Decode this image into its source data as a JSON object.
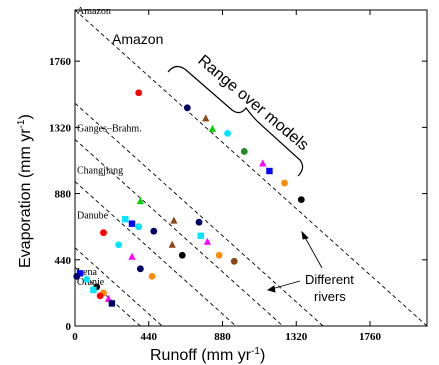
{
  "chart_data": {
    "type": "scatter",
    "xlabel": "Runoff (mm yr",
    "xlabel_sup": "-1",
    "xlabel_end": ")",
    "ylabel": "Evaporation (mm yr",
    "ylabel_sup": "-1",
    "ylabel_end": ")",
    "xlim": [
      0,
      2100
    ],
    "ylim": [
      0,
      2100
    ],
    "xticks": [
      0,
      440,
      880,
      1320,
      1760
    ],
    "yticks": [
      0,
      440,
      880,
      1320,
      1760
    ],
    "xtick_labels": [
      "0",
      "440",
      "880",
      "1320",
      "1760"
    ],
    "ytick_labels": [
      "0",
      "440",
      "880",
      "1320",
      "1760"
    ],
    "grid": false,
    "rivers": [
      {
        "name": "Amazon",
        "precip": 2100,
        "label_at": [
          0,
          2100
        ]
      },
      {
        "name": "Ganges–Brahm.",
        "precip": 1480,
        "label_at": [
          0,
          1320
        ]
      },
      {
        "name": "Changjiang",
        "precip": 1240,
        "label_at": [
          0,
          1040
        ]
      },
      {
        "name": "Danube",
        "precip": 960,
        "label_at": [
          0,
          740
        ]
      },
      {
        "name": "Lena",
        "precip": 520,
        "label_at": [
          0,
          365
        ]
      },
      {
        "name": "Oranje",
        "precip": 390,
        "label_at": [
          0,
          300
        ]
      }
    ],
    "points": [
      {
        "x": 380,
        "y": 1550,
        "color": "#ff0000",
        "shape": "circle"
      },
      {
        "x": 670,
        "y": 1450,
        "color": "#000066",
        "shape": "circle"
      },
      {
        "x": 780,
        "y": 1380,
        "color": "#8b4513",
        "shape": "triangle"
      },
      {
        "x": 820,
        "y": 1310,
        "color": "#00cc00",
        "shape": "triangle"
      },
      {
        "x": 910,
        "y": 1280,
        "color": "#00e5ff",
        "shape": "circle"
      },
      {
        "x": 1010,
        "y": 1160,
        "color": "#228b22",
        "shape": "circle"
      },
      {
        "x": 1120,
        "y": 1080,
        "color": "#ff00ff",
        "shape": "triangle"
      },
      {
        "x": 1160,
        "y": 1030,
        "color": "#0000ff",
        "shape": "square"
      },
      {
        "x": 1250,
        "y": 950,
        "color": "#ff8c00",
        "shape": "circle"
      },
      {
        "x": 1350,
        "y": 840,
        "color": "#000000",
        "shape": "circle"
      },
      {
        "x": 170,
        "y": 620,
        "color": "#ff0000",
        "shape": "circle"
      },
      {
        "x": 260,
        "y": 540,
        "color": "#00e5ff",
        "shape": "circle"
      },
      {
        "x": 340,
        "y": 460,
        "color": "#ff00ff",
        "shape": "triangle"
      },
      {
        "x": 390,
        "y": 380,
        "color": "#000066",
        "shape": "circle"
      },
      {
        "x": 460,
        "y": 330,
        "color": "#ff8c00",
        "shape": "circle"
      },
      {
        "x": 390,
        "y": 830,
        "color": "#00cc00",
        "shape": "triangle"
      },
      {
        "x": 300,
        "y": 710,
        "color": "#00e5ff",
        "shape": "square"
      },
      {
        "x": 340,
        "y": 680,
        "color": "#0000ff",
        "shape": "square"
      },
      {
        "x": 380,
        "y": 660,
        "color": "#00e5ff",
        "shape": "circle"
      },
      {
        "x": 470,
        "y": 630,
        "color": "#000066",
        "shape": "circle"
      },
      {
        "x": 580,
        "y": 540,
        "color": "#8b4513",
        "shape": "triangle"
      },
      {
        "x": 640,
        "y": 470,
        "color": "#000000",
        "shape": "circle"
      },
      {
        "x": 590,
        "y": 700,
        "color": "#8b4513",
        "shape": "triangle"
      },
      {
        "x": 740,
        "y": 690,
        "color": "#000066",
        "shape": "circle"
      },
      {
        "x": 750,
        "y": 600,
        "color": "#00e5ff",
        "shape": "square"
      },
      {
        "x": 790,
        "y": 560,
        "color": "#ff00ff",
        "shape": "triangle"
      },
      {
        "x": 860,
        "y": 470,
        "color": "#ff8c00",
        "shape": "circle"
      },
      {
        "x": 950,
        "y": 430,
        "color": "#8b4513",
        "shape": "circle"
      },
      {
        "x": 30,
        "y": 350,
        "color": "#0000ff",
        "shape": "square"
      },
      {
        "x": 70,
        "y": 310,
        "color": "#00e5ff",
        "shape": "circle"
      },
      {
        "x": 130,
        "y": 260,
        "color": "#000000",
        "shape": "circle"
      },
      {
        "x": 170,
        "y": 220,
        "color": "#ff8c00",
        "shape": "circle"
      },
      {
        "x": 200,
        "y": 180,
        "color": "#ff00ff",
        "shape": "triangle"
      },
      {
        "x": 220,
        "y": 150,
        "color": "#000066",
        "shape": "square"
      },
      {
        "x": 10,
        "y": 330,
        "color": "#000066",
        "shape": "circle"
      },
      {
        "x": 110,
        "y": 240,
        "color": "#00e5ff",
        "shape": "square"
      },
      {
        "x": 150,
        "y": 200,
        "color": "#ff0000",
        "shape": "circle"
      }
    ],
    "annotations": {
      "amazon_label": "Amazon",
      "range_label": "Range over models",
      "rivers_label_line1": "Different",
      "rivers_label_line2": "rivers"
    }
  }
}
